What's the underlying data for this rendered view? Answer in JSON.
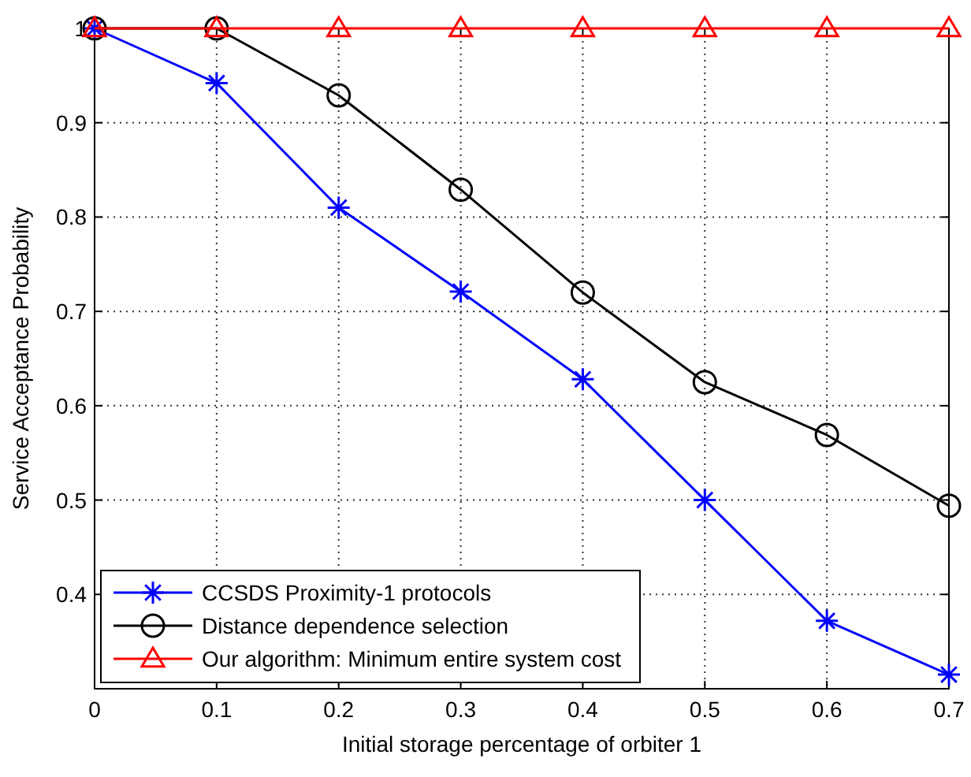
{
  "chart_data": {
    "type": "line",
    "xlabel": "Initial storage percentage of orbiter 1",
    "ylabel": "Service Acceptance Probability",
    "x": [
      0,
      0.1,
      0.2,
      0.3,
      0.4,
      0.5,
      0.6,
      0.7
    ],
    "xlim": [
      0,
      0.7
    ],
    "xticks": [
      0,
      0.1,
      0.2,
      0.3,
      0.4,
      0.5,
      0.6,
      0.7
    ],
    "ylim": [
      0.3,
      1
    ],
    "yticks": [
      {
        "value": 0.3,
        "label": null
      },
      0.4,
      0.5,
      0.6,
      0.7,
      0.8,
      0.9,
      1
    ],
    "grid": true,
    "legend": "bottom left",
    "line_style": "solid",
    "series": [
      {
        "name": "CCSDS Proximity-1 protocols",
        "color": "#0000ff",
        "marker": "cross",
        "values": [
          1,
          0.942,
          0.81,
          0.721,
          0.628,
          0.5,
          0.372,
          0.315
        ]
      },
      {
        "name": "Distance dependence selection",
        "color": "#000000",
        "marker": "circle",
        "values": [
          1,
          1,
          0.929,
          0.829,
          0.72,
          0.625,
          0.569,
          0.494
        ]
      },
      {
        "name": "Our algorithm: Minimum entire system cost",
        "color": "#ff0000",
        "marker": "triangle",
        "values": [
          1,
          1,
          1,
          1,
          1,
          1,
          1,
          1
        ]
      }
    ]
  }
}
